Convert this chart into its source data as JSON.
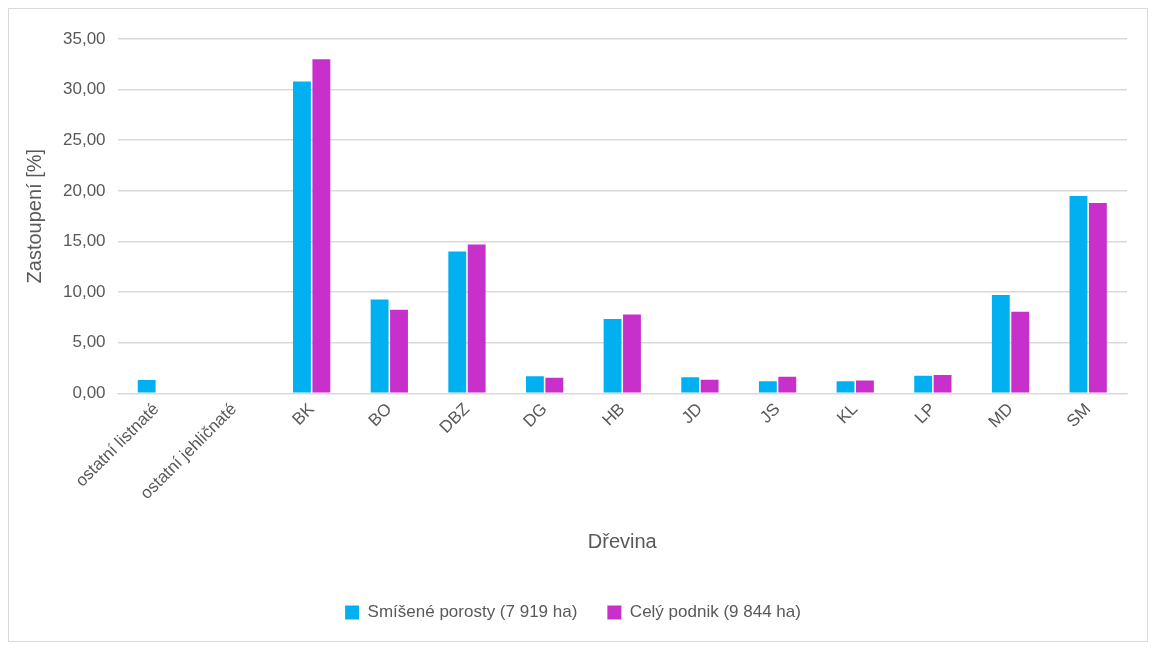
{
  "chart_data": {
    "type": "bar",
    "xlabel": "Dřevina",
    "ylabel": "Zastoupení [%]",
    "categories": [
      "ostatní listnaté",
      "ostatní jehličnaté",
      "BK",
      "BO",
      "DBZ",
      "DG",
      "HB",
      "JD",
      "JS",
      "KL",
      "LP",
      "MD",
      "SM"
    ],
    "series": [
      {
        "name": "Smíšené porosty (7 919 ha)",
        "color": "#00b0f0",
        "values": [
          1.33,
          0,
          30.8,
          9.26,
          14.0,
          1.7,
          7.35,
          1.58,
          1.2,
          1.2,
          1.74,
          9.72,
          19.5
        ]
      },
      {
        "name": "Celý podnik (9 844 ha)",
        "color": "#c830cc",
        "values": [
          0,
          0,
          33.0,
          8.26,
          14.7,
          1.55,
          7.8,
          1.35,
          1.65,
          1.27,
          1.82,
          8.06,
          18.8
        ]
      }
    ],
    "ylim": [
      0,
      35
    ],
    "yticks": [
      {
        "value": 0,
        "label": "0,00"
      },
      {
        "value": 5,
        "label": "5,00"
      },
      {
        "value": 10,
        "label": "10,00"
      },
      {
        "value": 15,
        "label": "15,00"
      },
      {
        "value": 20,
        "label": "20,00"
      },
      {
        "value": 25,
        "label": "25,00"
      },
      {
        "value": 30,
        "label": "30,00"
      },
      {
        "value": 35,
        "label": "35,00"
      }
    ],
    "grid": "y",
    "legend": "bottom"
  }
}
